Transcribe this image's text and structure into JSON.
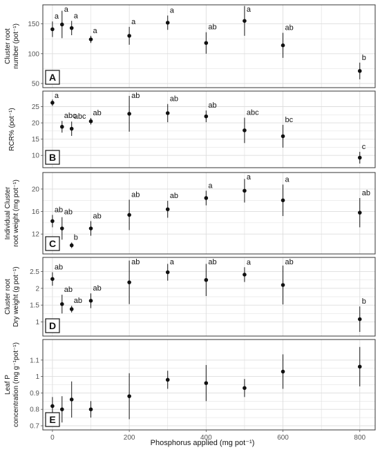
{
  "chart_data": [
    {
      "type": "scatter",
      "panel": "A",
      "ylabel": [
        "Cluster root",
        "number (pot⁻¹)"
      ],
      "ylim": [
        50,
        175
      ],
      "yticks": [
        50,
        100,
        150
      ],
      "x": [
        0,
        25,
        50,
        100,
        200,
        300,
        400,
        500,
        600,
        800
      ],
      "y": [
        141,
        149,
        143,
        124,
        130,
        152,
        118,
        155,
        114,
        71
      ],
      "err": [
        13,
        23,
        12,
        6,
        15,
        12,
        18,
        25,
        21,
        14
      ],
      "labels": [
        "a",
        "a",
        "a",
        "a",
        "a",
        "a",
        "ab",
        "a",
        "ab",
        "b"
      ]
    },
    {
      "type": "scatter",
      "panel": "B",
      "ylabel": [
        "RCR% (pot⁻¹)"
      ],
      "ylim": [
        7.5,
        28.5
      ],
      "yticks": [
        10,
        15,
        20,
        25
      ],
      "x": [
        0,
        25,
        50,
        100,
        200,
        300,
        400,
        500,
        600,
        800
      ],
      "y": [
        26.2,
        18.8,
        18.2,
        20.5,
        22.8,
        23.0,
        22.0,
        17.7,
        15.9,
        9.3
      ],
      "err": [
        1.0,
        1.8,
        2.2,
        1.0,
        5.5,
        2.8,
        1.8,
        3.9,
        3.5,
        1.8
      ],
      "labels": [
        "a",
        "abc",
        "abc",
        "ab",
        "ab",
        "ab",
        "ab",
        "abc",
        "bc",
        "c"
      ]
    },
    {
      "type": "scatter",
      "panel": "C",
      "ylabel": [
        "Individual Cluster",
        "root weight (mg pot⁻¹)"
      ],
      "ylim": [
        9.2,
        22.2
      ],
      "yticks": [
        12,
        16,
        20
      ],
      "x": [
        0,
        25,
        50,
        100,
        200,
        300,
        400,
        500,
        600,
        800
      ],
      "y": [
        14.3,
        13.0,
        10.0,
        13.0,
        15.4,
        16.4,
        18.4,
        19.7,
        18.0,
        15.8
      ],
      "err": [
        1.1,
        2.0,
        0.5,
        1.3,
        2.7,
        1.5,
        1.3,
        2.1,
        2.8,
        2.6
      ],
      "labels": [
        "ab",
        "ab",
        "b",
        "ab",
        "ab",
        "ab",
        "a",
        "a",
        "a",
        "ab"
      ]
    },
    {
      "type": "scatter",
      "panel": "D",
      "ylabel": [
        "Cluster root",
        "Dry weight (g pot⁻¹)"
      ],
      "ylim": [
        0.7,
        2.8
      ],
      "yticks": [
        1.0,
        1.5,
        2.0,
        2.5
      ],
      "x": [
        0,
        25,
        50,
        100,
        200,
        300,
        400,
        500,
        600,
        800
      ],
      "y": [
        2.28,
        1.53,
        1.38,
        1.63,
        2.18,
        2.48,
        2.25,
        2.41,
        2.1,
        1.08
      ],
      "err": [
        0.2,
        0.28,
        0.1,
        0.22,
        0.65,
        0.25,
        0.48,
        0.22,
        0.58,
        0.38
      ],
      "labels": [
        "ab",
        "ab",
        "ab",
        "ab",
        "ab",
        "a",
        "ab",
        "a",
        "ab",
        "b"
      ]
    },
    {
      "type": "scatter",
      "panel": "E",
      "ylabel": [
        "Leaf P",
        "concentration (mg g⁻¹pot⁻¹)"
      ],
      "ylim": [
        0.7,
        1.2
      ],
      "yticks": [
        0.7,
        0.8,
        0.9,
        1.0,
        1.1
      ],
      "x": [
        0,
        25,
        50,
        100,
        200,
        300,
        400,
        500,
        600,
        800
      ],
      "y": [
        0.82,
        0.8,
        0.86,
        0.8,
        0.88,
        0.98,
        0.96,
        0.93,
        1.03,
        1.06
      ],
      "err": [
        0.055,
        0.08,
        0.11,
        0.05,
        0.14,
        0.055,
        0.11,
        0.055,
        0.105,
        0.12
      ],
      "labels": []
    }
  ],
  "x_axis": {
    "label": "Phosphorus applied (mg pot⁻¹)",
    "xlim": [
      -25,
      840
    ],
    "ticks": [
      0,
      200,
      400,
      600,
      800
    ]
  },
  "style": {
    "point_color": "#111111",
    "grid_color": "#dddddd",
    "frame_color": "#333333"
  }
}
